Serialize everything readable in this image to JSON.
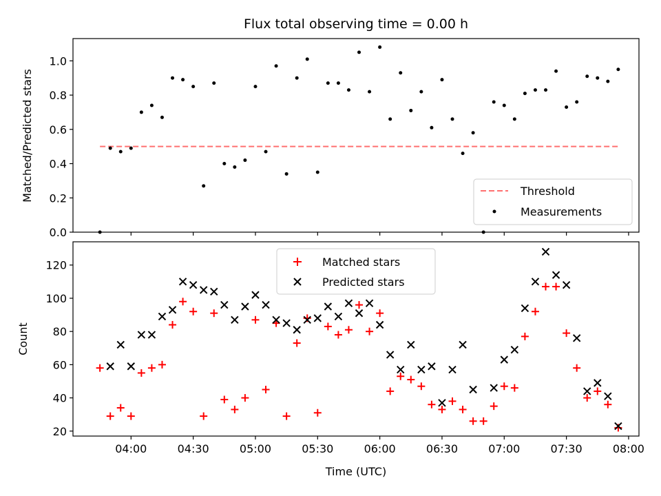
{
  "title": "Flux total observing time = 0.00 h",
  "chart_data": [
    {
      "type": "scatter",
      "ylabel": "Matched/Predicted stars",
      "ylim": [
        0,
        1.13
      ],
      "xlim": [
        "03:32",
        "08:05"
      ],
      "yticks": [
        "0.0",
        "0.2",
        "0.4",
        "0.6",
        "0.8",
        "1.0"
      ],
      "ytick_values": [
        0,
        0.2,
        0.4,
        0.6,
        0.8,
        1.0
      ],
      "legend_position": "lower-right",
      "threshold": {
        "name": "Threshold",
        "value": 0.5,
        "x_start": "03:45",
        "x_end": "07:55",
        "color": "#ff6f6f"
      },
      "series": [
        {
          "name": "Measurements",
          "color": "#000000",
          "x": [
            "03:45",
            "03:50",
            "03:55",
            "04:00",
            "04:05",
            "04:10",
            "04:15",
            "04:20",
            "04:25",
            "04:30",
            "04:35",
            "04:40",
            "04:45",
            "04:50",
            "04:55",
            "05:00",
            "05:05",
            "05:10",
            "05:15",
            "05:20",
            "05:25",
            "05:30",
            "05:35",
            "05:40",
            "05:45",
            "05:50",
            "05:55",
            "06:00",
            "06:05",
            "06:10",
            "06:15",
            "06:20",
            "06:25",
            "06:30",
            "06:35",
            "06:40",
            "06:45",
            "06:50",
            "06:55",
            "07:00",
            "07:05",
            "07:10",
            "07:15",
            "07:20",
            "07:25",
            "07:30",
            "07:35",
            "07:40",
            "07:45",
            "07:50",
            "07:55"
          ],
          "y": [
            0.0,
            0.49,
            0.47,
            0.49,
            0.7,
            0.74,
            0.67,
            0.9,
            0.89,
            0.85,
            0.27,
            0.87,
            0.4,
            0.38,
            0.42,
            0.85,
            0.47,
            0.97,
            0.34,
            0.9,
            1.01,
            0.35,
            0.87,
            0.87,
            0.83,
            1.05,
            0.82,
            1.08,
            0.66,
            0.93,
            0.71,
            0.82,
            0.61,
            0.89,
            0.66,
            0.46,
            0.58,
            0.0,
            0.76,
            0.74,
            0.66,
            0.81,
            0.83,
            0.83,
            0.94,
            0.73,
            0.76,
            0.91,
            0.9,
            0.88,
            0.95
          ]
        }
      ]
    },
    {
      "type": "scatter",
      "ylabel": "Count",
      "xlabel": "Time (UTC)",
      "ylim": [
        17,
        134
      ],
      "xlim": [
        "03:32",
        "08:05"
      ],
      "yticks": [
        "20",
        "40",
        "60",
        "80",
        "100",
        "120"
      ],
      "ytick_values": [
        20,
        40,
        60,
        80,
        100,
        120
      ],
      "xticks": [
        "04:00",
        "04:30",
        "05:00",
        "05:30",
        "06:00",
        "06:30",
        "07:00",
        "07:30",
        "08:00"
      ],
      "legend_position": "upper-center",
      "series": [
        {
          "name": "Matched stars",
          "marker": "plus",
          "color": "#ff0000",
          "x": [
            "03:45",
            "03:50",
            "03:55",
            "04:00",
            "04:05",
            "04:10",
            "04:15",
            "04:20",
            "04:25",
            "04:30",
            "04:35",
            "04:40",
            "04:45",
            "04:50",
            "04:55",
            "05:00",
            "05:05",
            "05:10",
            "05:15",
            "05:20",
            "05:25",
            "05:30",
            "05:35",
            "05:40",
            "05:45",
            "05:50",
            "05:55",
            "06:00",
            "06:05",
            "06:10",
            "06:15",
            "06:20",
            "06:25",
            "06:30",
            "06:35",
            "06:40",
            "06:45",
            "06:50",
            "06:55",
            "07:00",
            "07:05",
            "07:10",
            "07:15",
            "07:20",
            "07:25",
            "07:30",
            "07:35",
            "07:40",
            "07:45",
            "07:50",
            "07:55"
          ],
          "y": [
            58,
            29,
            34,
            29,
            55,
            58,
            60,
            84,
            98,
            92,
            29,
            91,
            39,
            33,
            40,
            87,
            45,
            85,
            29,
            73,
            88,
            31,
            83,
            78,
            81,
            96,
            80,
            91,
            44,
            53,
            51,
            47,
            36,
            33,
            38,
            33,
            26,
            26,
            35,
            47,
            46,
            77,
            92,
            107,
            107,
            79,
            58,
            40,
            44,
            36,
            22
          ]
        },
        {
          "name": "Predicted stars",
          "marker": "x",
          "color": "#000000",
          "x": [
            "03:50",
            "03:55",
            "04:00",
            "04:05",
            "04:10",
            "04:15",
            "04:20",
            "04:25",
            "04:30",
            "04:35",
            "04:40",
            "04:45",
            "04:50",
            "04:55",
            "05:00",
            "05:05",
            "05:10",
            "05:15",
            "05:20",
            "05:25",
            "05:30",
            "05:35",
            "05:40",
            "05:45",
            "05:50",
            "05:55",
            "06:00",
            "06:05",
            "06:10",
            "06:15",
            "06:20",
            "06:25",
            "06:30",
            "06:35",
            "06:40",
            "06:45",
            "06:55",
            "07:00",
            "07:05",
            "07:10",
            "07:15",
            "07:20",
            "07:25",
            "07:30",
            "07:35",
            "07:40",
            "07:45",
            "07:50",
            "07:55"
          ],
          "y": [
            59,
            72,
            59,
            78,
            78,
            89,
            93,
            110,
            108,
            105,
            104,
            96,
            87,
            95,
            102,
            96,
            87,
            85,
            81,
            87,
            88,
            95,
            89,
            97,
            91,
            97,
            84,
            66,
            57,
            72,
            57,
            59,
            37,
            57,
            72,
            45,
            46,
            63,
            69,
            94,
            110,
            128,
            114,
            108,
            76,
            44,
            49,
            41,
            23
          ]
        }
      ]
    }
  ]
}
